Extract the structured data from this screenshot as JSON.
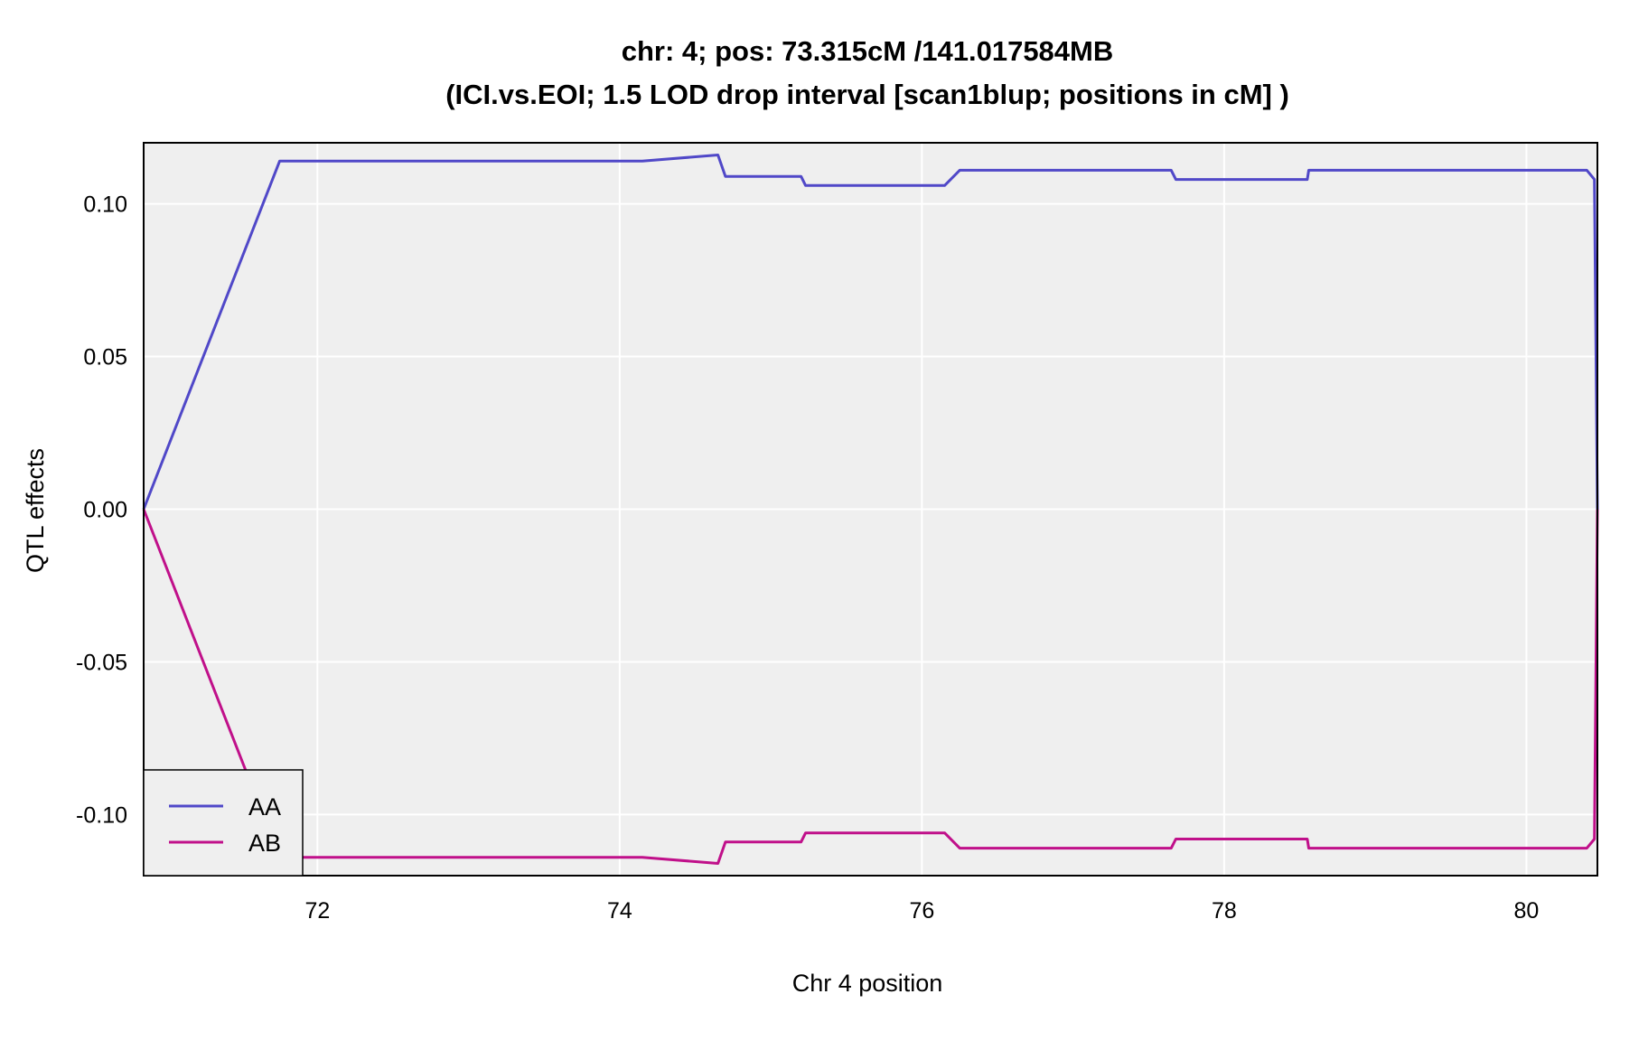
{
  "chart_data": {
    "type": "line",
    "title": "chr: 4; pos: 73.315cM /141.017584MB",
    "subtitle": "(ICI.vs.EOI; 1.5 LOD drop interval [scan1blup; positions in cM] )",
    "xlabel": "Chr 4 position",
    "ylabel": "QTL effects",
    "xlim": [
      70.85,
      80.47
    ],
    "ylim": [
      -0.12,
      0.12
    ],
    "xticks": [
      72,
      74,
      76,
      78,
      80
    ],
    "xtick_labels": [
      "72",
      "74",
      "76",
      "78",
      "80"
    ],
    "yticks": [
      -0.1,
      -0.05,
      0.0,
      0.05,
      0.1
    ],
    "ytick_labels": [
      "-0.10",
      "-0.05",
      "0.00",
      "0.05",
      "0.10"
    ],
    "grid": true,
    "legend_position": "bottom-left",
    "background_color": "#efefef",
    "series": [
      {
        "name": "AA",
        "color": "#5048c8",
        "x": [
          70.85,
          71.75,
          74.15,
          74.65,
          74.7,
          75.2,
          75.23,
          76.15,
          76.25,
          77.65,
          77.68,
          77.78,
          78.55,
          78.56,
          80.4,
          80.45,
          80.47
        ],
        "y": [
          0.0,
          0.114,
          0.114,
          0.116,
          0.109,
          0.109,
          0.106,
          0.106,
          0.111,
          0.111,
          0.108,
          0.108,
          0.108,
          0.111,
          0.111,
          0.108,
          0.0
        ]
      },
      {
        "name": "AB",
        "color": "#c0108a",
        "x": [
          70.85,
          71.75,
          74.15,
          74.65,
          74.7,
          75.2,
          75.23,
          76.15,
          76.25,
          77.65,
          77.68,
          77.78,
          78.55,
          78.56,
          80.4,
          80.45,
          80.47
        ],
        "y": [
          0.0,
          -0.114,
          -0.114,
          -0.116,
          -0.109,
          -0.109,
          -0.106,
          -0.106,
          -0.111,
          -0.111,
          -0.108,
          -0.108,
          -0.108,
          -0.111,
          -0.111,
          -0.108,
          0.0
        ]
      }
    ]
  }
}
